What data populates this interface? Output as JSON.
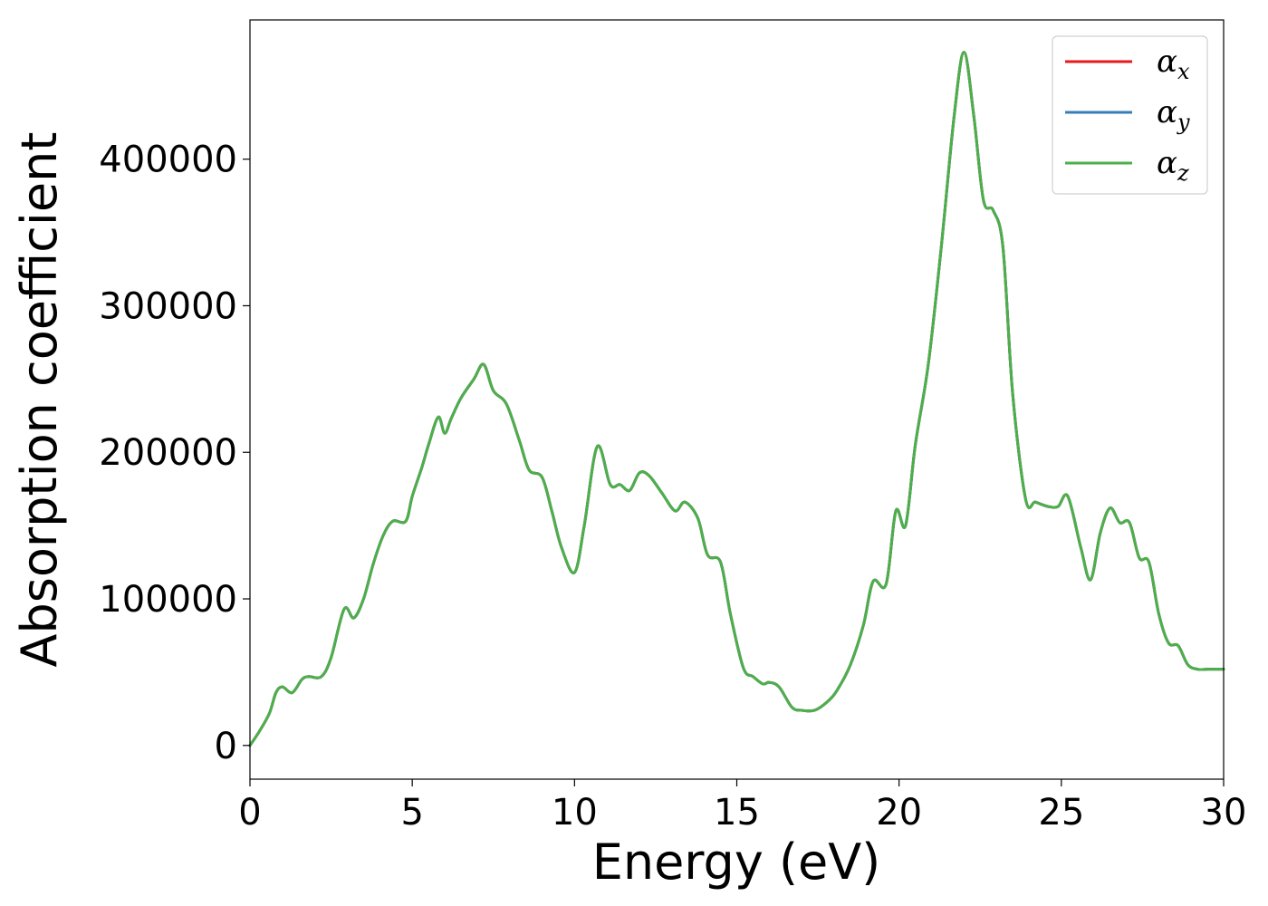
{
  "chart_data": {
    "type": "line",
    "title": "",
    "xlabel": "Energy (eV)",
    "ylabel": "Absorption coefficient",
    "xlim": [
      0,
      30
    ],
    "ylim": [
      -23000,
      495000
    ],
    "xticks": [
      0,
      5,
      10,
      15,
      20,
      25,
      30
    ],
    "yticks": [
      0,
      100000,
      200000,
      300000,
      400000
    ],
    "grid": false,
    "legend_position": "top-right",
    "series": [
      {
        "name": "α",
        "sub": "x",
        "color": "#e41a1c"
      },
      {
        "name": "α",
        "sub": "y",
        "color": "#377eb8"
      },
      {
        "name": "α",
        "sub": "z",
        "color": "#4daf4a"
      }
    ],
    "x": [
      0,
      0.3,
      0.6,
      0.8,
      1.0,
      1.3,
      1.6,
      1.8,
      2.2,
      2.5,
      2.9,
      3.2,
      3.5,
      3.8,
      4.1,
      4.4,
      4.8,
      5.0,
      5.3,
      5.5,
      5.8,
      6.0,
      6.2,
      6.5,
      6.9,
      7.2,
      7.5,
      7.9,
      8.3,
      8.6,
      9.0,
      9.3,
      9.6,
      10.0,
      10.3,
      10.7,
      11.1,
      11.4,
      11.7,
      12.0,
      12.3,
      12.7,
      13.1,
      13.4,
      13.8,
      14.1,
      14.5,
      14.8,
      15.2,
      15.5,
      15.8,
      16.0,
      16.3,
      16.7,
      17.0,
      17.4,
      17.8,
      18.1,
      18.5,
      18.9,
      19.2,
      19.6,
      19.9,
      20.2,
      20.5,
      20.9,
      21.3,
      21.7,
      22.0,
      22.3,
      22.6,
      22.9,
      23.2,
      23.5,
      23.9,
      24.2,
      24.6,
      24.9,
      25.2,
      25.6,
      25.9,
      26.2,
      26.5,
      26.8,
      27.1,
      27.4,
      27.7,
      28.0,
      28.3,
      28.6,
      28.9,
      29.2,
      29.5,
      29.8,
      30.0
    ],
    "y": [
      0,
      10000,
      22000,
      36000,
      40000,
      36000,
      45000,
      47000,
      47000,
      60000,
      93000,
      87000,
      100000,
      124000,
      143000,
      153000,
      153000,
      170000,
      190000,
      205000,
      224000,
      213000,
      223000,
      237000,
      250000,
      260000,
      242000,
      233000,
      208000,
      188000,
      183000,
      160000,
      135000,
      118000,
      150000,
      204000,
      178000,
      178000,
      174000,
      186000,
      184000,
      172000,
      160000,
      166000,
      155000,
      130000,
      125000,
      90000,
      53000,
      47000,
      42000,
      43000,
      40000,
      26000,
      24000,
      24000,
      30000,
      38000,
      55000,
      82000,
      112000,
      110000,
      160000,
      150000,
      205000,
      260000,
      340000,
      430000,
      473000,
      430000,
      372000,
      365000,
      340000,
      240000,
      168000,
      166000,
      163000,
      163000,
      170000,
      135000,
      113000,
      145000,
      162000,
      152000,
      152000,
      128000,
      125000,
      90000,
      70000,
      68000,
      55000,
      52000,
      52000,
      52000,
      52000
    ]
  }
}
